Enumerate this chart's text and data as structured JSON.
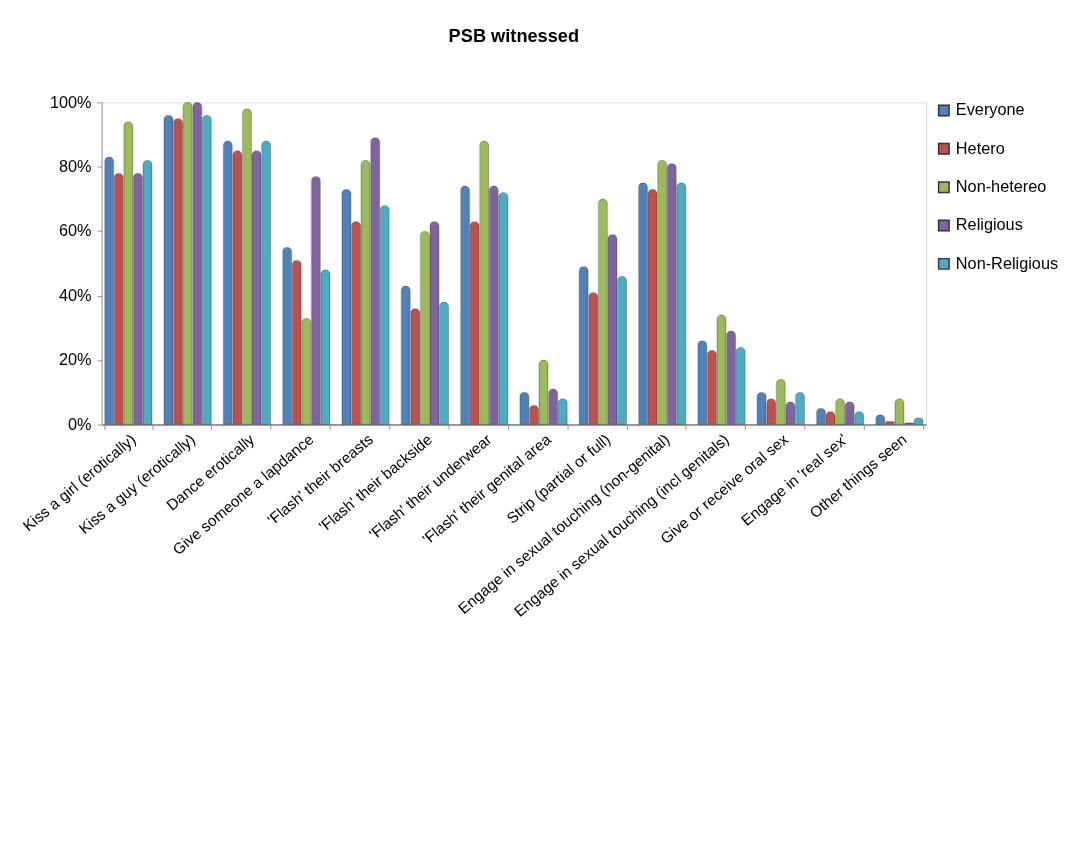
{
  "chart_data": {
    "type": "bar",
    "title": "PSB witnessed",
    "categories": [
      "Kiss a girl (erotically)",
      "Kiss a guy (erotically)",
      "Dance erotically",
      "Give someone a lapdance",
      "'Flash' their breasts",
      "'Flash' their  backside",
      "'Flash' their  underwear",
      "'Flash' their genital area",
      "Strip (partial or full)",
      "Engage in sexual  touching (non-genital)",
      "Engage in sexual touching (incl genitals)",
      "Give or receive oral sex",
      "Engage in 'real sex'",
      "Other things seen"
    ],
    "series": [
      {
        "name": "Everyone",
        "color": "#4f81bd",
        "values": [
          83,
          96,
          88,
          55,
          73,
          43,
          74,
          10,
          49,
          75,
          26,
          10,
          5,
          3
        ]
      },
      {
        "name": "Hetero",
        "color": "#c0504d",
        "values": [
          78,
          95,
          85,
          51,
          63,
          36,
          63,
          6,
          41,
          73,
          23,
          8,
          4,
          1
        ]
      },
      {
        "name": "Non-hetereo",
        "color": "#9bbb59",
        "values": [
          94,
          100,
          98,
          33,
          82,
          60,
          88,
          20,
          70,
          82,
          34,
          14,
          8,
          8
        ]
      },
      {
        "name": "Religious",
        "color": "#8064a2",
        "values": [
          78,
          100,
          85,
          77,
          89,
          63,
          74,
          11,
          59,
          81,
          29,
          7,
          7,
          0.5
        ]
      },
      {
        "name": "Non-Religious",
        "color": "#4bacc6",
        "values": [
          82,
          96,
          88,
          48,
          68,
          38,
          72,
          8,
          46,
          75,
          24,
          10,
          4,
          2
        ]
      }
    ],
    "ylim": [
      0,
      100
    ],
    "yticks": [
      {
        "value": 0,
        "label": "0%"
      },
      {
        "value": 20,
        "label": "20%"
      },
      {
        "value": 40,
        "label": "40%"
      },
      {
        "value": 60,
        "label": "60%"
      },
      {
        "value": 80,
        "label": "80%"
      },
      {
        "value": 100,
        "label": "100%"
      }
    ],
    "grid": false,
    "legend": "top right"
  }
}
